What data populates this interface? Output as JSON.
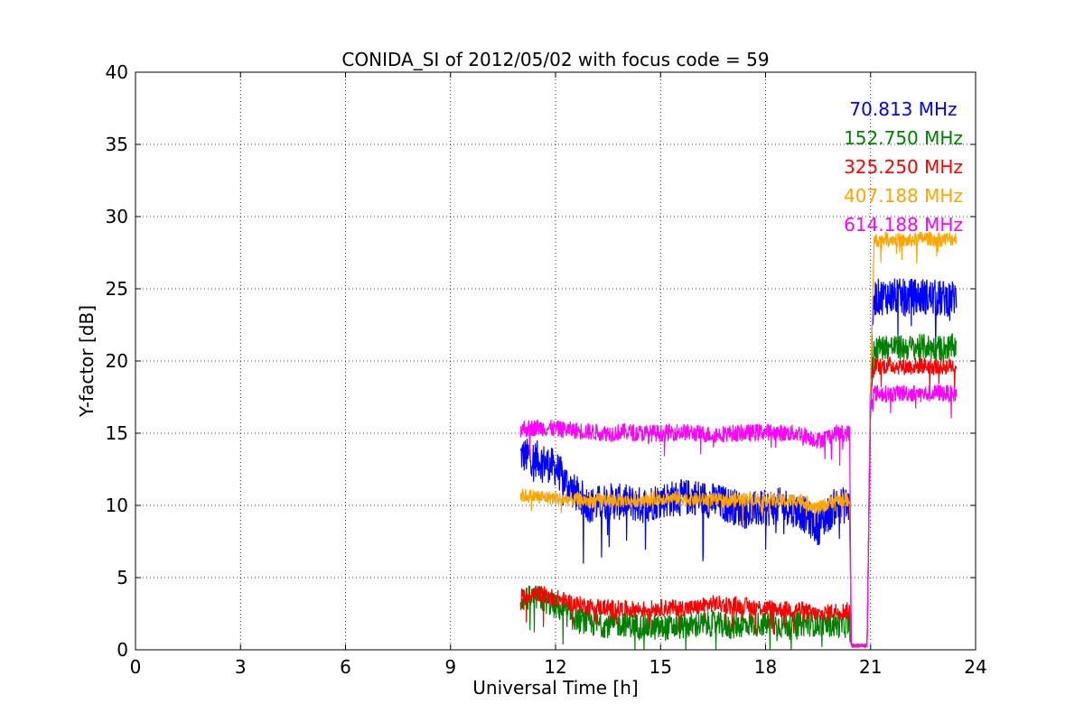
{
  "chart_data": {
    "type": "line",
    "title": "CONIDA_SI of 2012/05/02 with focus code = 59",
    "xlabel": "Universal Time [h]",
    "ylabel": "Y-factor [dB]",
    "xlim": [
      0,
      24
    ],
    "ylim": [
      0,
      40
    ],
    "xticks": [
      "0",
      "3",
      "6",
      "9",
      "12",
      "15",
      "18",
      "21",
      "24"
    ],
    "yticks": [
      "0",
      "5",
      "10",
      "15",
      "20",
      "25",
      "30",
      "35",
      "40"
    ],
    "grid": true,
    "legend_position": "top-right",
    "series": [
      {
        "name": "70.813 MHz",
        "color": "#0000ff",
        "x": [
          11.0,
          11.5,
          12.0,
          12.5,
          13.0,
          13.5,
          14.0,
          14.5,
          15.0,
          15.5,
          16.0,
          16.5,
          17.0,
          17.5,
          18.0,
          18.5,
          19.0,
          19.5,
          20.0,
          20.4,
          20.45,
          20.9,
          21.0,
          21.1,
          21.5,
          22.0,
          22.5,
          23.0,
          23.45
        ],
        "y": [
          13.5,
          13.2,
          12.6,
          11.0,
          10.0,
          10.3,
          10.2,
          10.0,
          10.4,
          10.5,
          10.6,
          10.3,
          10.0,
          9.6,
          9.8,
          10.0,
          9.6,
          8.5,
          10.0,
          10.0,
          0.3,
          0.3,
          18.5,
          24.4,
          24.5,
          24.4,
          24.5,
          24.3,
          24.4
        ],
        "spread": 1.3
      },
      {
        "name": "152.750 MHz",
        "color": "#008000",
        "x": [
          11.0,
          11.5,
          12.0,
          12.5,
          13.0,
          13.5,
          14.0,
          14.5,
          15.0,
          15.5,
          16.0,
          16.5,
          17.0,
          17.5,
          18.0,
          18.5,
          19.0,
          19.5,
          20.0,
          20.4,
          20.45,
          20.9,
          21.0,
          21.1,
          21.5,
          22.0,
          22.5,
          23.0,
          23.45
        ],
        "y": [
          3.5,
          3.6,
          3.0,
          2.3,
          1.8,
          1.7,
          1.8,
          1.6,
          1.5,
          1.6,
          1.7,
          1.8,
          1.6,
          1.8,
          1.8,
          1.7,
          1.8,
          1.8,
          1.7,
          1.7,
          0.3,
          0.3,
          17.0,
          20.9,
          21.0,
          20.9,
          21.0,
          20.9,
          21.0
        ],
        "spread": 0.9
      },
      {
        "name": "325.250 MHz",
        "color": "#ff0000",
        "x": [
          11.0,
          11.5,
          12.0,
          12.5,
          13.0,
          13.5,
          14.0,
          14.5,
          15.0,
          15.5,
          16.0,
          16.5,
          17.0,
          17.5,
          18.0,
          18.5,
          19.0,
          19.5,
          20.0,
          20.4,
          20.45,
          20.9,
          21.0,
          21.1,
          21.5,
          22.0,
          22.5,
          23.0,
          23.45
        ],
        "y": [
          3.7,
          3.9,
          3.6,
          3.2,
          3.0,
          2.9,
          2.8,
          2.8,
          2.9,
          2.9,
          2.9,
          3.2,
          3.1,
          3.0,
          2.9,
          2.8,
          2.8,
          2.4,
          2.7,
          2.7,
          0.3,
          0.3,
          17.5,
          19.6,
          19.7,
          19.6,
          19.7,
          19.6,
          19.7
        ],
        "spread": 0.6
      },
      {
        "name": "407.188 MHz",
        "color": "#ffa500",
        "x": [
          11.0,
          11.5,
          12.0,
          12.5,
          13.0,
          13.5,
          14.0,
          14.5,
          15.0,
          15.5,
          16.0,
          16.5,
          17.0,
          17.5,
          18.0,
          18.5,
          19.0,
          19.5,
          20.0,
          20.4,
          20.45,
          20.9,
          21.0,
          21.1,
          21.5,
          22.0,
          22.5,
          23.0,
          23.45
        ],
        "y": [
          10.7,
          10.6,
          10.5,
          10.4,
          10.3,
          10.4,
          10.3,
          10.4,
          10.5,
          10.5,
          10.4,
          10.4,
          10.3,
          10.5,
          10.4,
          10.3,
          10.4,
          9.8,
          10.4,
          10.4,
          0.3,
          0.3,
          18.0,
          28.3,
          28.5,
          28.3,
          28.5,
          28.4,
          28.5
        ],
        "spread": 0.5
      },
      {
        "name": "614.188 MHz",
        "color": "#ff00ff",
        "x": [
          11.0,
          11.5,
          12.0,
          12.5,
          13.0,
          13.5,
          14.0,
          14.5,
          15.0,
          15.5,
          16.0,
          16.5,
          17.0,
          17.5,
          18.0,
          18.5,
          19.0,
          19.5,
          20.0,
          20.4,
          20.45,
          20.9,
          21.0,
          21.1,
          21.5,
          22.0,
          22.5,
          23.0,
          23.45
        ],
        "y": [
          15.3,
          15.4,
          15.3,
          15.2,
          15.1,
          15.0,
          15.1,
          15.0,
          15.0,
          15.1,
          15.0,
          14.9,
          15.0,
          15.0,
          15.1,
          15.0,
          15.0,
          14.5,
          15.0,
          15.0,
          0.3,
          0.3,
          17.0,
          17.8,
          17.7,
          17.8,
          17.7,
          17.8,
          17.7
        ],
        "spread": 0.6
      }
    ]
  }
}
